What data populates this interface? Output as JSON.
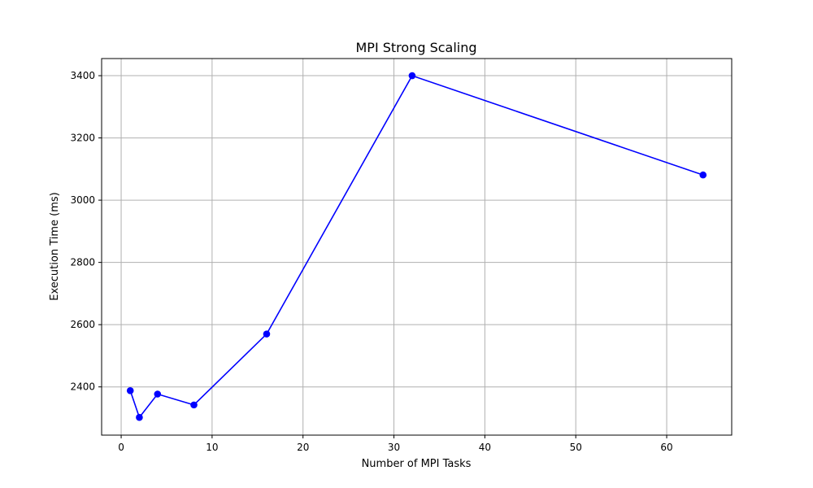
{
  "chart_data": {
    "type": "line",
    "title": "MPI Strong Scaling",
    "xlabel": "Number of MPI Tasks",
    "ylabel": "Execution Time (ms)",
    "xlim": [
      -2.15,
      67.15
    ],
    "ylim": [
      2245,
      3455
    ],
    "xticks": [
      0,
      10,
      20,
      30,
      40,
      50,
      60
    ],
    "yticks": [
      2400,
      2600,
      2800,
      3000,
      3200,
      3400
    ],
    "grid": true,
    "series": [
      {
        "color": "#0000ff",
        "marker": "circle",
        "x": [
          1,
          2,
          4,
          8,
          16,
          32,
          64
        ],
        "y": [
          2388,
          2302,
          2377,
          2342,
          2570,
          3400,
          3081
        ]
      }
    ]
  }
}
